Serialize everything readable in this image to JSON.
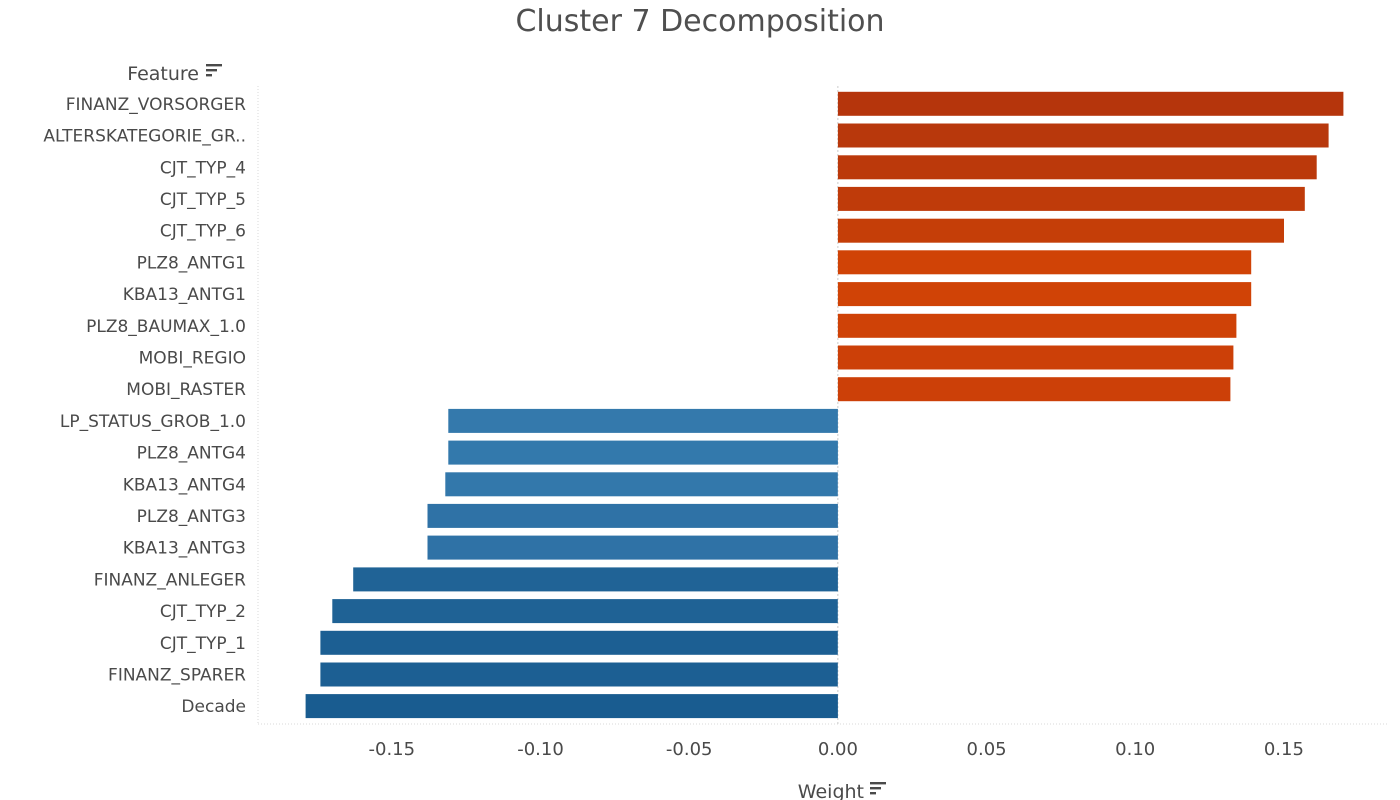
{
  "chart_data": {
    "type": "bar",
    "orientation": "horizontal",
    "title": "Cluster 7 Decomposition",
    "ylabel": "Feature",
    "xlabel": "Weight",
    "sort_icon": "sort-descending-icon",
    "categories": [
      "FINANZ_VORSORGER",
      "ALTERSKATEGORIE_GR..",
      "CJT_TYP_4",
      "CJT_TYP_5",
      "CJT_TYP_6",
      "PLZ8_ANTG1",
      "KBA13_ANTG1",
      "PLZ8_BAUMAX_1.0",
      "MOBI_REGIO",
      "MOBI_RASTER",
      "LP_STATUS_GROB_1.0",
      "PLZ8_ANTG4",
      "KBA13_ANTG4",
      "PLZ8_ANTG3",
      "KBA13_ANTG3",
      "FINANZ_ANLEGER",
      "CJT_TYP_2",
      "CJT_TYP_1",
      "FINANZ_SPARER",
      "Decade"
    ],
    "values": [
      0.17,
      0.165,
      0.161,
      0.157,
      0.15,
      0.139,
      0.139,
      0.134,
      0.133,
      0.132,
      -0.131,
      -0.131,
      -0.132,
      -0.138,
      -0.138,
      -0.163,
      -0.17,
      -0.174,
      -0.174,
      -0.179
    ],
    "colors": [
      "#b5350c",
      "#b8380c",
      "#bb390b",
      "#bf3b0a",
      "#c53e08",
      "#d04306",
      "#d04306",
      "#cf4207",
      "#cc4008",
      "#cc4008",
      "#3479ac",
      "#3379ac",
      "#3378ab",
      "#2f72a6",
      "#2f72a6",
      "#206396",
      "#1f6295",
      "#1c5f93",
      "#1c5f93",
      "#195c90"
    ],
    "xlim": [
      -0.195,
      0.185
    ],
    "xticks": [
      -0.15,
      -0.1,
      -0.05,
      0.0,
      0.05,
      0.1,
      0.15
    ],
    "xtick_labels": [
      "-0.15",
      "-0.10",
      "-0.05",
      "0.00",
      "0.05",
      "0.10",
      "0.15"
    ],
    "grid": false
  }
}
